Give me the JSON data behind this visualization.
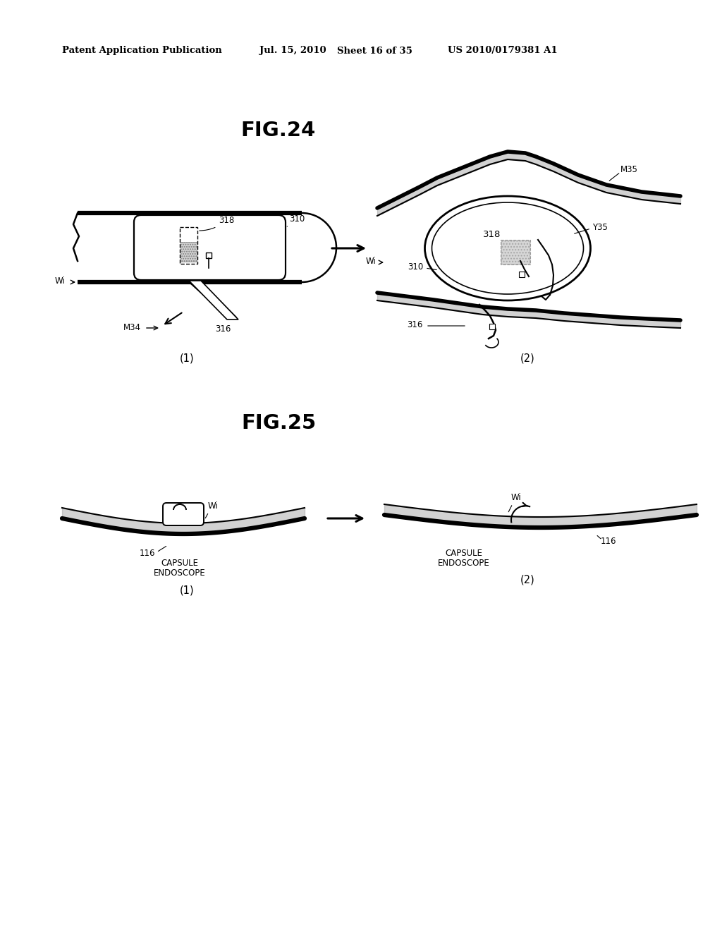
{
  "background_color": "#ffffff",
  "header_left": "Patent Application Publication",
  "header_mid1": "Jul. 15, 2010",
  "header_mid2": "Sheet 16 of 35",
  "header_right": "US 2010/0179381 A1",
  "fig24_title": "FIG.24",
  "fig25_title": "FIG.25",
  "label_1": "(1)",
  "label_2": "(2)",
  "lbl_318": "318",
  "lbl_310": "310",
  "lbl_316": "316",
  "lbl_M34": "M34",
  "lbl_M35": "M35",
  "lbl_Y35": "Y35",
  "lbl_Wi": "Wi",
  "lbl_116": "116",
  "lbl_cap1": "CAPSULE",
  "lbl_cap2": "ENDOSCOPE"
}
